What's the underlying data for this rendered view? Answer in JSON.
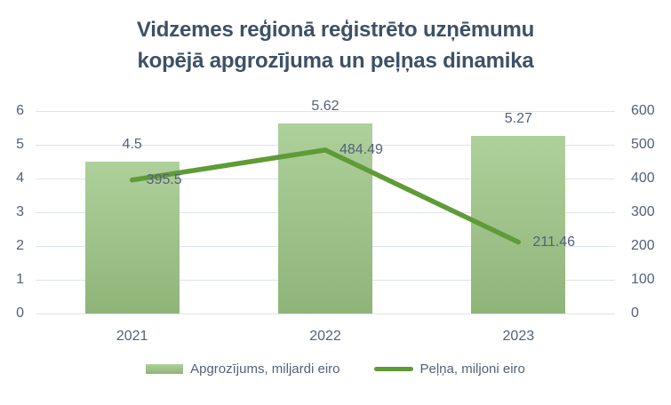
{
  "header": {
    "title_lines": [
      "Vidzemes reģionā reģistrēto uzņēmumu",
      "kopējā apgrozījuma un peļņas dinamika"
    ]
  },
  "chart_data": {
    "type": "bar",
    "subtype": "combo-bar-line",
    "title": "Vidzemes reģionā reģistrēto uzņēmumu kopējā apgrozījuma un peļņas dinamika",
    "categories": [
      "2021",
      "2022",
      "2023"
    ],
    "series": [
      {
        "name": "Apgrozījums, miljardi eiro",
        "type": "bar",
        "axis": "left",
        "values": [
          4.5,
          5.62,
          5.27
        ],
        "labels": [
          "4.5",
          "5.62",
          "5.27"
        ]
      },
      {
        "name": "Peļņa, miljoni eiro",
        "type": "line",
        "axis": "right",
        "values": [
          395.5,
          484.49,
          211.46
        ],
        "labels": [
          "395.5",
          "484.49",
          "211.46"
        ]
      }
    ],
    "left_axis": {
      "min": 0,
      "max": 6,
      "step": 1,
      "ticks": [
        "0",
        "1",
        "2",
        "3",
        "4",
        "5",
        "6"
      ]
    },
    "right_axis": {
      "min": 0,
      "max": 600,
      "step": 100,
      "ticks": [
        "0",
        "100",
        "200",
        "300",
        "400",
        "500",
        "600"
      ]
    },
    "grid": true,
    "legend_position": "bottom",
    "colors": {
      "bar_top": "#aed09b",
      "bar_bottom": "#8fb478",
      "line": "#5f9b37",
      "title": "#3d5166",
      "label": "#546179",
      "gridline": "#dde4ee"
    }
  }
}
